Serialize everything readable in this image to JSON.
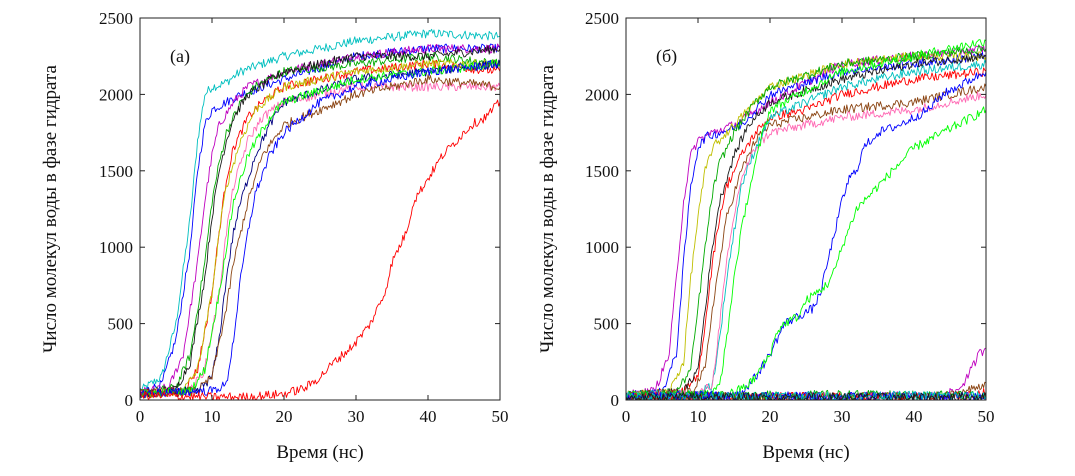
{
  "figure": {
    "background": "#ffffff",
    "line_colors": [
      "#0000ff",
      "#00aa00",
      "#ff0000",
      "#00bfbf",
      "#bf00bf",
      "#bfbf00",
      "#1a1a1a",
      "#8b4513",
      "#ff69b4",
      "#00ff00",
      "#000080",
      "#8b0000",
      "#808000",
      "#ff8c00",
      "#6a5acd",
      "#2e8b57"
    ]
  },
  "chart_data": [
    {
      "type": "line",
      "panel_label": "(а)",
      "xlabel": "Время (нс)",
      "ylabel": "Число молекул воды в фазе гидрата",
      "xlim": [
        0,
        50
      ],
      "ylim": [
        0,
        2500
      ],
      "xticks": [
        0,
        10,
        20,
        30,
        40,
        50
      ],
      "yticks": [
        0,
        500,
        1000,
        1500,
        2000,
        2500
      ],
      "xtick_labels": [
        "0",
        "10",
        "20",
        "30",
        "40",
        "50"
      ],
      "ytick_labels": [
        "0",
        "500",
        "1000",
        "1500",
        "2000",
        "2500"
      ],
      "grid": false,
      "series": [
        {
          "color": "#00bfbf",
          "x": [
            0,
            3,
            5,
            7,
            8,
            9,
            10,
            11,
            12,
            14,
            20,
            30,
            40,
            50
          ],
          "y": [
            60,
            150,
            500,
            1200,
            1700,
            2000,
            2050,
            2060,
            2080,
            2150,
            2250,
            2350,
            2400,
            2380
          ]
        },
        {
          "color": "#0000ff",
          "x": [
            0,
            3,
            5,
            7,
            8,
            9,
            10,
            12,
            14,
            20,
            30,
            40,
            50
          ],
          "y": [
            50,
            100,
            400,
            1000,
            1500,
            1800,
            1900,
            1950,
            2000,
            2100,
            2250,
            2300,
            2300
          ]
        },
        {
          "color": "#bf00bf",
          "x": [
            0,
            4,
            6,
            8,
            9,
            10,
            11,
            13,
            15,
            20,
            30,
            40,
            50
          ],
          "y": [
            50,
            80,
            300,
            900,
            1300,
            1600,
            1800,
            1950,
            2050,
            2150,
            2250,
            2300,
            2300
          ]
        },
        {
          "color": "#00aa00",
          "x": [
            0,
            5,
            7,
            9,
            10,
            11,
            12,
            14,
            16,
            20,
            30,
            40,
            50
          ],
          "y": [
            40,
            80,
            300,
            900,
            1300,
            1550,
            1750,
            1950,
            2050,
            2150,
            2200,
            2250,
            2200
          ]
        },
        {
          "color": "#1a1a1a",
          "x": [
            0,
            5,
            7,
            9,
            10,
            11,
            12,
            13,
            15,
            20,
            30,
            40,
            50
          ],
          "y": [
            40,
            70,
            250,
            800,
            1200,
            1500,
            1700,
            1850,
            2000,
            2150,
            2250,
            2250,
            2300
          ]
        },
        {
          "color": "#ff0000",
          "x": [
            0,
            6,
            8,
            10,
            11,
            12,
            13,
            15,
            17,
            20,
            30,
            40,
            50
          ],
          "y": [
            40,
            60,
            200,
            700,
            1100,
            1450,
            1650,
            1850,
            1950,
            2050,
            2150,
            2200,
            2150
          ]
        },
        {
          "color": "#bfbf00",
          "x": [
            0,
            6,
            8,
            10,
            11,
            12,
            14,
            16,
            20,
            30,
            40,
            50
          ],
          "y": [
            40,
            60,
            200,
            700,
            1100,
            1400,
            1700,
            1900,
            2050,
            2150,
            2200,
            2200
          ]
        },
        {
          "color": "#ff69b4",
          "x": [
            0,
            7,
            9,
            11,
            12,
            13,
            15,
            17,
            20,
            30,
            40,
            50
          ],
          "y": [
            40,
            60,
            200,
            700,
            1100,
            1400,
            1700,
            1850,
            1950,
            2050,
            2050,
            2050
          ]
        },
        {
          "color": "#000080",
          "x": [
            0,
            8,
            10,
            11,
            12,
            13,
            14,
            16,
            18,
            20,
            30,
            40,
            50
          ],
          "y": [
            40,
            60,
            150,
            400,
            800,
            1100,
            1300,
            1600,
            1800,
            1950,
            2100,
            2150,
            2200
          ]
        },
        {
          "color": "#8b4513",
          "x": [
            0,
            8,
            10,
            12,
            13,
            15,
            17,
            20,
            25,
            30,
            40,
            50
          ],
          "y": [
            40,
            60,
            150,
            600,
            900,
            1300,
            1600,
            1800,
            1900,
            2000,
            2100,
            2050
          ]
        },
        {
          "color": "#00ff00",
          "x": [
            0,
            7,
            9,
            11,
            12,
            13,
            15,
            18,
            20,
            30,
            40,
            50
          ],
          "y": [
            40,
            60,
            200,
            700,
            1000,
            1300,
            1600,
            1850,
            1950,
            2100,
            2150,
            2200
          ]
        },
        {
          "color": "#0000ff",
          "x": [
            0,
            10,
            12,
            13,
            14,
            15,
            16,
            18,
            20,
            25,
            30,
            40,
            50
          ],
          "y": [
            40,
            60,
            100,
            400,
            800,
            1100,
            1350,
            1600,
            1750,
            1950,
            2050,
            2150,
            2200
          ]
        },
        {
          "color": "#ff0000",
          "x": [
            0,
            10,
            15,
            20,
            23,
            25,
            27,
            29,
            30,
            32,
            34,
            35,
            37,
            38,
            40,
            42,
            44,
            46,
            48,
            50
          ],
          "y": [
            30,
            20,
            20,
            40,
            80,
            150,
            250,
            330,
            380,
            500,
            700,
            900,
            1100,
            1300,
            1450,
            1600,
            1700,
            1800,
            1850,
            1950
          ]
        }
      ]
    },
    {
      "type": "line",
      "panel_label": "(б)",
      "xlabel": "Время (нс)",
      "ylabel": "Число молекул воды в фазе гидрата",
      "xlim": [
        0,
        50
      ],
      "ylim": [
        0,
        2500
      ],
      "xticks": [
        0,
        10,
        20,
        30,
        40,
        50
      ],
      "yticks": [
        0,
        500,
        1000,
        1500,
        2000,
        2500
      ],
      "xtick_labels": [
        "0",
        "10",
        "20",
        "30",
        "40",
        "50"
      ],
      "ytick_labels": [
        "0",
        "500",
        "1000",
        "1500",
        "2000",
        "2500"
      ],
      "grid": false,
      "series": [
        {
          "color": "#bf00bf",
          "x": [
            0,
            4,
            6,
            7,
            8,
            9,
            10,
            12,
            15,
            20,
            30,
            40,
            50
          ],
          "y": [
            30,
            60,
            300,
            800,
            1300,
            1600,
            1700,
            1750,
            1800,
            1950,
            2200,
            2250,
            2300
          ]
        },
        {
          "color": "#0000ff",
          "x": [
            0,
            5,
            7,
            8,
            9,
            10,
            11,
            13,
            16,
            20,
            30,
            40,
            50
          ],
          "y": [
            30,
            50,
            300,
            900,
            1400,
            1650,
            1720,
            1750,
            1800,
            2000,
            2150,
            2200,
            2250
          ]
        },
        {
          "color": "#bfbf00",
          "x": [
            0,
            6,
            8,
            9,
            10,
            11,
            12,
            14,
            17,
            20,
            30,
            40,
            50
          ],
          "y": [
            30,
            50,
            250,
            800,
            1200,
            1500,
            1650,
            1750,
            1900,
            2050,
            2200,
            2250,
            2250
          ]
        },
        {
          "color": "#00aa00",
          "x": [
            0,
            7,
            9,
            10,
            11,
            12,
            13,
            15,
            18,
            20,
            30,
            40,
            50
          ],
          "y": [
            30,
            50,
            200,
            600,
            1000,
            1350,
            1550,
            1750,
            1950,
            2050,
            2200,
            2250,
            2300
          ]
        },
        {
          "color": "#ff0000",
          "x": [
            0,
            8,
            10,
            11,
            12,
            13,
            14,
            16,
            18,
            20,
            25,
            30,
            40,
            50
          ],
          "y": [
            30,
            50,
            150,
            500,
            900,
            1200,
            1400,
            1600,
            1750,
            1850,
            1900,
            2000,
            2100,
            2150
          ]
        },
        {
          "color": "#1a1a1a",
          "x": [
            0,
            8,
            10,
            11,
            12,
            13,
            15,
            17,
            20,
            30,
            40,
            50
          ],
          "y": [
            30,
            50,
            200,
            600,
            1000,
            1300,
            1600,
            1800,
            1950,
            2100,
            2200,
            2250
          ]
        },
        {
          "color": "#8b4513",
          "x": [
            0,
            9,
            11,
            12,
            13,
            14,
            16,
            18,
            20,
            30,
            40,
            50
          ],
          "y": [
            30,
            50,
            200,
            600,
            900,
            1200,
            1500,
            1700,
            1800,
            1900,
            1950,
            2050
          ]
        },
        {
          "color": "#00bfbf",
          "x": [
            0,
            10,
            12,
            13,
            14,
            15,
            16,
            18,
            20,
            30,
            40,
            50
          ],
          "y": [
            30,
            40,
            100,
            400,
            800,
            1100,
            1400,
            1650,
            1850,
            2050,
            2150,
            2200
          ]
        },
        {
          "color": "#ff69b4",
          "x": [
            0,
            10,
            12,
            13,
            14,
            15,
            16,
            18,
            20,
            25,
            30,
            40,
            50
          ],
          "y": [
            30,
            40,
            100,
            500,
            900,
            1200,
            1450,
            1650,
            1750,
            1800,
            1850,
            1900,
            2000
          ]
        },
        {
          "color": "#00ff00",
          "x": [
            0,
            12,
            13,
            14,
            15,
            16,
            17,
            18,
            19,
            20,
            30,
            40,
            50
          ],
          "y": [
            30,
            40,
            100,
            400,
            800,
            1100,
            1350,
            1550,
            1750,
            1900,
            2150,
            2250,
            2350
          ]
        },
        {
          "color": "#0000ff",
          "x": [
            0,
            12,
            14,
            16,
            17,
            18,
            20,
            22,
            24,
            26,
            27,
            28,
            30,
            31,
            32,
            33,
            34,
            35,
            38,
            40,
            42,
            44,
            46,
            48,
            50
          ],
          "y": [
            20,
            30,
            30,
            50,
            100,
            150,
            300,
            500,
            550,
            600,
            700,
            900,
            1300,
            1450,
            1500,
            1650,
            1700,
            1750,
            1800,
            1850,
            1900,
            2000,
            2050,
            2100,
            2150
          ]
        },
        {
          "color": "#00ff00",
          "x": [
            0,
            10,
            13,
            15,
            17,
            18,
            20,
            21,
            22,
            24,
            25,
            27,
            28,
            29,
            30,
            32,
            34,
            35,
            38,
            40,
            42,
            44,
            46,
            48,
            50
          ],
          "y": [
            20,
            20,
            30,
            50,
            100,
            150,
            300,
            450,
            500,
            550,
            650,
            720,
            760,
            850,
            1000,
            1250,
            1350,
            1400,
            1550,
            1650,
            1700,
            1750,
            1800,
            1850,
            1900
          ]
        },
        {
          "color": "#bf00bf",
          "x": [
            0,
            20,
            30,
            40,
            44,
            46,
            47,
            48,
            49,
            50
          ],
          "y": [
            20,
            20,
            25,
            25,
            30,
            60,
            120,
            200,
            300,
            340
          ]
        },
        {
          "color": "#8b4513",
          "x": [
            0,
            20,
            30,
            40,
            44,
            46,
            48,
            49,
            50
          ],
          "y": [
            20,
            20,
            20,
            20,
            25,
            40,
            70,
            90,
            110
          ]
        },
        {
          "color": "#ff0000",
          "x": [
            0,
            20,
            30,
            40,
            45,
            48,
            50
          ],
          "y": [
            20,
            20,
            20,
            20,
            20,
            30,
            50
          ]
        },
        {
          "color": "#00aa00",
          "x": [
            0,
            10,
            20,
            30,
            40,
            50
          ],
          "y": [
            30,
            35,
            30,
            35,
            30,
            35
          ]
        },
        {
          "color": "#0000ff",
          "x": [
            0,
            10,
            20,
            30,
            40,
            50
          ],
          "y": [
            20,
            25,
            25,
            20,
            25,
            20
          ]
        },
        {
          "color": "#00bfbf",
          "x": [
            0,
            10,
            20,
            30,
            40,
            50
          ],
          "y": [
            25,
            20,
            30,
            25,
            30,
            25
          ]
        },
        {
          "color": "#1a1a1a",
          "x": [
            0,
            10,
            20,
            30,
            40,
            50
          ],
          "y": [
            15,
            20,
            15,
            20,
            15,
            20
          ]
        }
      ]
    }
  ]
}
